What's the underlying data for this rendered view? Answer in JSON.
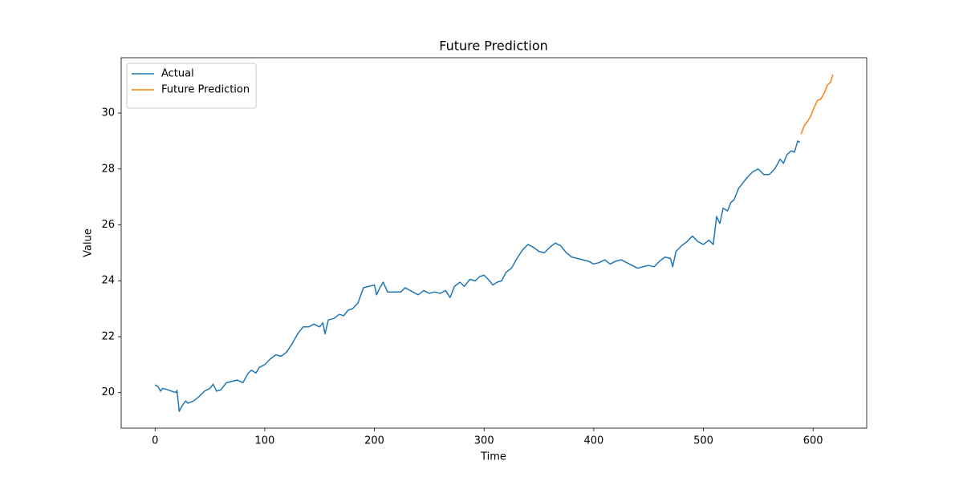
{
  "chart_data": {
    "type": "line",
    "title": "Future Prediction",
    "x_label": "Time",
    "y_label": "Value",
    "xlim": [
      -30.9,
      648.9
    ],
    "ylim": [
      18.73,
      31.98
    ],
    "xticks": [
      0,
      100,
      200,
      300,
      400,
      500,
      600
    ],
    "yticks": [
      20,
      22,
      24,
      26,
      28,
      30
    ],
    "legend": "upper left",
    "grid": false,
    "series": [
      {
        "name": "Actual",
        "color": "#1f77b4",
        "x": [
          0,
          3,
          5,
          7,
          10,
          15,
          19,
          20,
          22,
          25,
          28,
          30,
          35,
          40,
          45,
          50,
          53,
          56,
          60,
          65,
          70,
          75,
          80,
          85,
          88,
          92,
          95,
          100,
          105,
          110,
          115,
          120,
          125,
          130,
          135,
          140,
          145,
          150,
          153,
          155,
          158,
          163,
          168,
          172,
          176,
          180,
          185,
          190,
          195,
          200,
          202,
          205,
          208,
          212,
          218,
          224,
          228,
          235,
          240,
          245,
          250,
          255,
          260,
          265,
          269,
          273,
          278,
          282,
          287,
          292,
          296,
          300,
          305,
          308,
          312,
          316,
          320,
          325,
          330,
          335,
          340,
          345,
          350,
          355,
          360,
          365,
          370,
          375,
          380,
          385,
          390,
          395,
          400,
          405,
          410,
          415,
          420,
          425,
          430,
          435,
          440,
          445,
          450,
          455,
          460,
          465,
          470,
          472,
          475,
          480,
          485,
          490,
          495,
          500,
          505,
          509,
          512,
          515,
          518,
          522,
          525,
          528,
          532,
          536,
          540,
          545,
          550,
          555,
          560,
          565,
          570,
          573,
          576,
          580,
          583,
          586,
          588
        ],
        "values": [
          20.28,
          20.2,
          20.05,
          20.15,
          20.12,
          20.05,
          20.0,
          20.08,
          19.33,
          19.55,
          19.7,
          19.62,
          19.7,
          19.85,
          20.05,
          20.15,
          20.3,
          20.05,
          20.1,
          20.35,
          20.4,
          20.45,
          20.35,
          20.7,
          20.8,
          20.7,
          20.9,
          21.0,
          21.2,
          21.35,
          21.3,
          21.45,
          21.75,
          22.1,
          22.35,
          22.35,
          22.45,
          22.35,
          22.5,
          22.1,
          22.6,
          22.65,
          22.8,
          22.75,
          22.95,
          23.0,
          23.2,
          23.75,
          23.8,
          23.85,
          23.5,
          23.75,
          23.95,
          23.6,
          23.6,
          23.6,
          23.75,
          23.6,
          23.5,
          23.65,
          23.55,
          23.6,
          23.55,
          23.65,
          23.4,
          23.8,
          23.95,
          23.8,
          24.05,
          24.0,
          24.15,
          24.2,
          24.0,
          23.85,
          23.95,
          24.0,
          24.3,
          24.45,
          24.8,
          25.1,
          25.3,
          25.2,
          25.05,
          25.0,
          25.2,
          25.35,
          25.25,
          25.0,
          24.85,
          24.8,
          24.75,
          24.7,
          24.6,
          24.65,
          24.75,
          24.6,
          24.7,
          24.75,
          24.65,
          24.55,
          24.45,
          24.5,
          24.55,
          24.5,
          24.7,
          24.85,
          24.8,
          24.5,
          25.05,
          25.25,
          25.4,
          25.6,
          25.4,
          25.3,
          25.45,
          25.3,
          26.3,
          26.05,
          26.6,
          26.5,
          26.8,
          26.9,
          27.3,
          27.5,
          27.7,
          27.9,
          28.0,
          27.8,
          27.8,
          28.0,
          28.35,
          28.2,
          28.5,
          28.65,
          28.6,
          29.0,
          28.95
        ]
      },
      {
        "name": "Future Prediction",
        "color": "#ff7f0e",
        "x": [
          589,
          592,
          595,
          598,
          601,
          604,
          607,
          610,
          613,
          616,
          618
        ],
        "values": [
          29.25,
          29.55,
          29.7,
          29.9,
          30.2,
          30.45,
          30.5,
          30.7,
          31.0,
          31.1,
          31.38
        ]
      }
    ]
  }
}
